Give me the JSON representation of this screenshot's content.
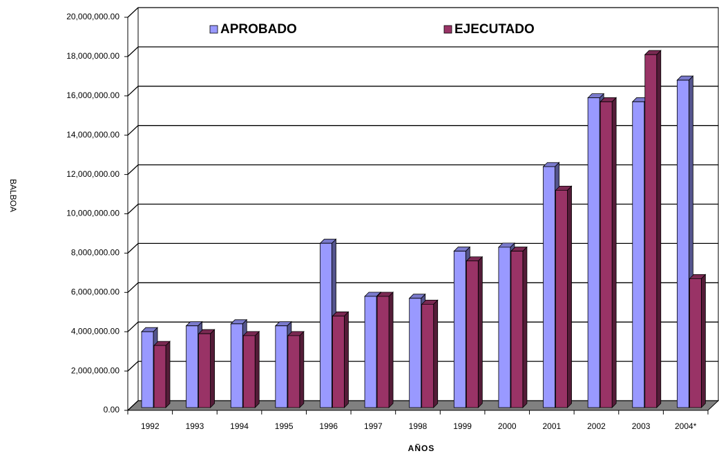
{
  "chart_data": {
    "type": "bar3d",
    "x_label": "AÑOS",
    "y_label": "BALBOA",
    "categories": [
      "1992",
      "1993",
      "1994",
      "1995",
      "1996",
      "1997",
      "1998",
      "1999",
      "2000",
      "2001",
      "2002",
      "2003",
      "2004*"
    ],
    "series": [
      {
        "name": "APROBADO",
        "color": "#9999ff",
        "values": [
          4000000,
          4300000,
          4400000,
          4300000,
          8500000,
          5800000,
          5700000,
          8100000,
          8300000,
          12400000,
          15900000,
          15700000,
          16800000
        ]
      },
      {
        "name": "EJECUTADO",
        "color": "#993366",
        "values": [
          3300000,
          3900000,
          3800000,
          3800000,
          4800000,
          5800000,
          5400000,
          7600000,
          8100000,
          11200000,
          15700000,
          18100000,
          6700000
        ]
      }
    ],
    "ylim": [
      0,
      20000000
    ],
    "yticks": [
      {
        "value": 0,
        "label": "0.00"
      },
      {
        "value": 2000000,
        "label": "2,000,000.00"
      },
      {
        "value": 4000000,
        "label": "4,000,000.00"
      },
      {
        "value": 6000000,
        "label": "6,000,000.00"
      },
      {
        "value": 8000000,
        "label": "8,000,000.00"
      },
      {
        "value": 10000000,
        "label": "10,000,000.00"
      },
      {
        "value": 12000000,
        "label": "12,000,000.00"
      },
      {
        "value": 14000000,
        "label": "14,000,000.00"
      },
      {
        "value": 16000000,
        "label": "16,000,000.00"
      },
      {
        "value": 18000000,
        "label": "18,000,000.00"
      },
      {
        "value": 20000000,
        "label": "20,000,000.00"
      }
    ],
    "grid": true,
    "legend": "top"
  }
}
